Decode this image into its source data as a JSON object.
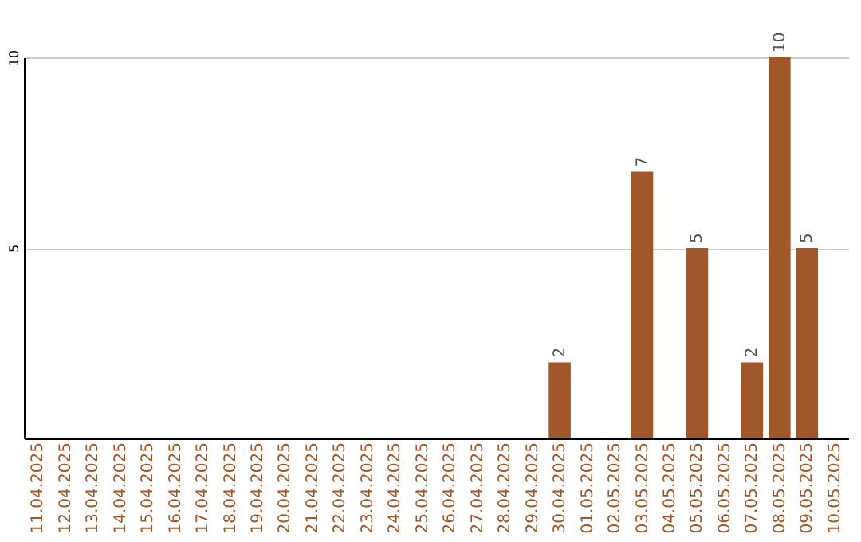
{
  "chart_data": {
    "type": "bar",
    "categories": [
      "11.04.2025",
      "12.04.2025",
      "13.04.2025",
      "14.04.2025",
      "15.04.2025",
      "16.04.2025",
      "17.04.2025",
      "18.04.2025",
      "19.04.2025",
      "20.04.2025",
      "21.04.2025",
      "22.04.2025",
      "23.04.2025",
      "24.04.2025",
      "25.04.2025",
      "26.04.2025",
      "27.04.2025",
      "28.04.2025",
      "29.04.2025",
      "30.04.2025",
      "01.05.2025",
      "02.05.2025",
      "03.05.2025",
      "04.05.2025",
      "05.05.2025",
      "06.05.2025",
      "07.05.2025",
      "08.05.2025",
      "09.05.2025",
      "10.05.2025"
    ],
    "values": [
      null,
      null,
      null,
      null,
      null,
      null,
      null,
      null,
      null,
      null,
      null,
      null,
      null,
      null,
      null,
      null,
      null,
      null,
      null,
      2,
      null,
      null,
      7,
      null,
      5,
      null,
      2,
      10,
      5,
      null
    ],
    "color": "#a0582a",
    "ylim": [
      0,
      10
    ],
    "yticks": [
      5,
      10
    ],
    "grid": "y",
    "data_labels": true
  }
}
